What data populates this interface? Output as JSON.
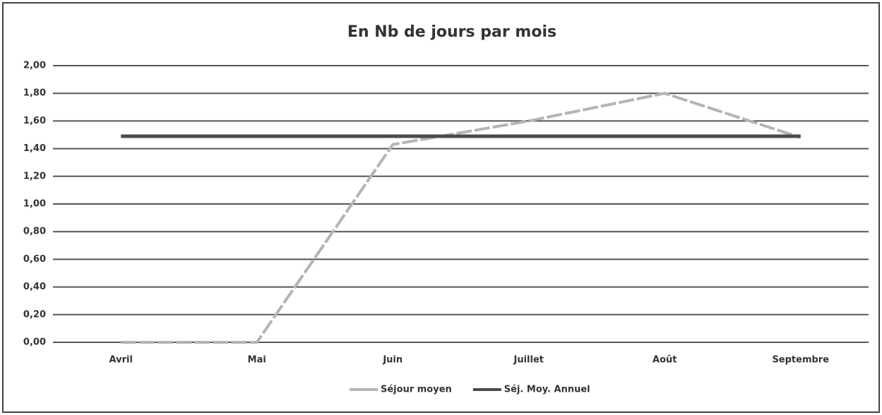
{
  "chart_data": {
    "type": "line",
    "title": "En Nb de jours par mois",
    "categories": [
      "Avril",
      "Mai",
      "Juin",
      "Juillet",
      "Août",
      "Septembre"
    ],
    "series": [
      {
        "name": "Séjour moyen",
        "color": "#b4b4b4",
        "values": [
          0,
          0,
          1.43,
          1.6,
          1.8,
          1.48
        ]
      },
      {
        "name": "Séj. Moy. Annuel",
        "color": "#4a4a4a",
        "values": [
          1.49,
          1.49,
          1.49,
          1.49,
          1.49,
          1.49
        ]
      }
    ],
    "ylim": [
      0,
      2
    ],
    "yticks": [
      {
        "value": 0,
        "label": "0,00"
      },
      {
        "value": 0.2,
        "label": "0,20"
      },
      {
        "value": 0.4,
        "label": "0,40"
      },
      {
        "value": 0.6,
        "label": "0,60"
      },
      {
        "value": 0.8,
        "label": "0,80"
      },
      {
        "value": 1,
        "label": "1,00"
      },
      {
        "value": 1.2,
        "label": "1,20"
      },
      {
        "value": 1.4,
        "label": "1,40"
      },
      {
        "value": 1.6,
        "label": "1,60"
      },
      {
        "value": 1.8,
        "label": "1,80"
      },
      {
        "value": 2,
        "label": "2,00"
      }
    ],
    "grid": true,
    "legend": "bottom"
  }
}
